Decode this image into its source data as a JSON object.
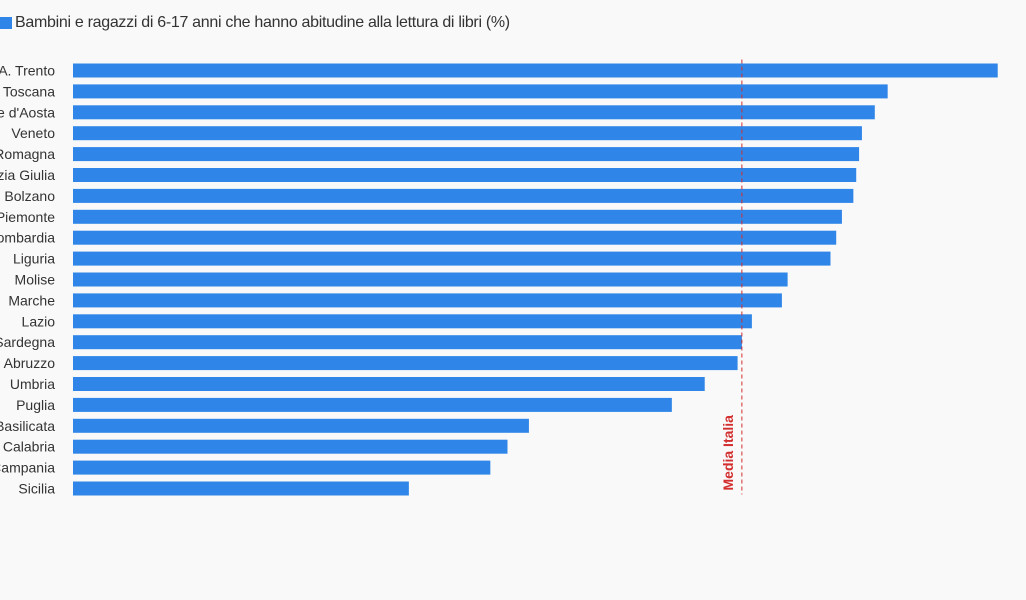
{
  "chart_data": {
    "type": "bar",
    "orientation": "horizontal",
    "series": [
      {
        "name": "Bambini e ragazzi di 6-17 anni che hanno abitudine alla lettura di libri (%)",
        "color": "#2f86e8"
      }
    ],
    "categories": [
      "P.A. Trento",
      "Toscana",
      "Valle d'Aosta",
      "Veneto",
      "Emilia-Romagna",
      "Friuli-Venezia Giulia",
      "P.A. Bolzano",
      "Piemonte",
      "Lombardia",
      "Liguria",
      "Molise",
      "Marche",
      "Lazio",
      "Sardegna",
      "Abruzzo",
      "Umbria",
      "Puglia",
      "Basilicata",
      "Calabria",
      "Campania",
      "Sicilia"
    ],
    "values": [
      64.7,
      57.0,
      56.1,
      55.2,
      55.0,
      54.8,
      54.6,
      53.8,
      53.4,
      53.0,
      50.0,
      49.6,
      47.5,
      46.8,
      46.5,
      44.2,
      41.9,
      31.9,
      30.4,
      29.2,
      23.5
    ],
    "xlim": [
      0,
      65
    ],
    "reference_line": {
      "label": "Media Italia",
      "value": 46.8,
      "color": "#d32f2f"
    },
    "grid": false,
    "legend_position": "top-left"
  }
}
